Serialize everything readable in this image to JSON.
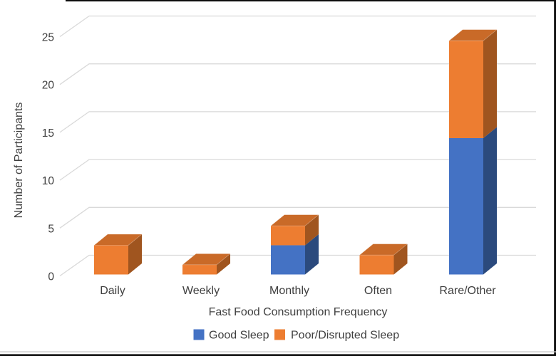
{
  "figure": {
    "background": "#ffffff",
    "gridline_color": "#d9d9d9",
    "text_color": "#3f3f3f",
    "border_color": "#000000",
    "footer_rule_color": "#c9c9c9"
  },
  "chart_data": {
    "type": "bar",
    "subtype": "3d-stacked-column",
    "title": "",
    "xlabel": "Fast Food Consumption Frequency",
    "ylabel": "Number of Participants",
    "categories": [
      "Daily",
      "Weekly",
      "Monthly",
      "Often",
      "Rare/Other"
    ],
    "series": [
      {
        "name": "Good Sleep",
        "values": [
          0,
          0,
          3,
          0,
          14
        ],
        "colors": {
          "front": "#4472C4",
          "side": "#2B4A7D",
          "top": "#375E9E"
        }
      },
      {
        "name": "Poor/Disrupted Sleep",
        "values": [
          3,
          1,
          2,
          2,
          10
        ],
        "colors": {
          "front": "#ED7D31",
          "side": "#A0551F",
          "top": "#C96A28"
        }
      }
    ],
    "totals": [
      3,
      1,
      5,
      2,
      24
    ],
    "ylim": [
      0,
      25
    ],
    "ytick_step": 5,
    "yticks": [
      0,
      5,
      10,
      15,
      20,
      25
    ],
    "grid": true,
    "legend_position": "bottom"
  }
}
